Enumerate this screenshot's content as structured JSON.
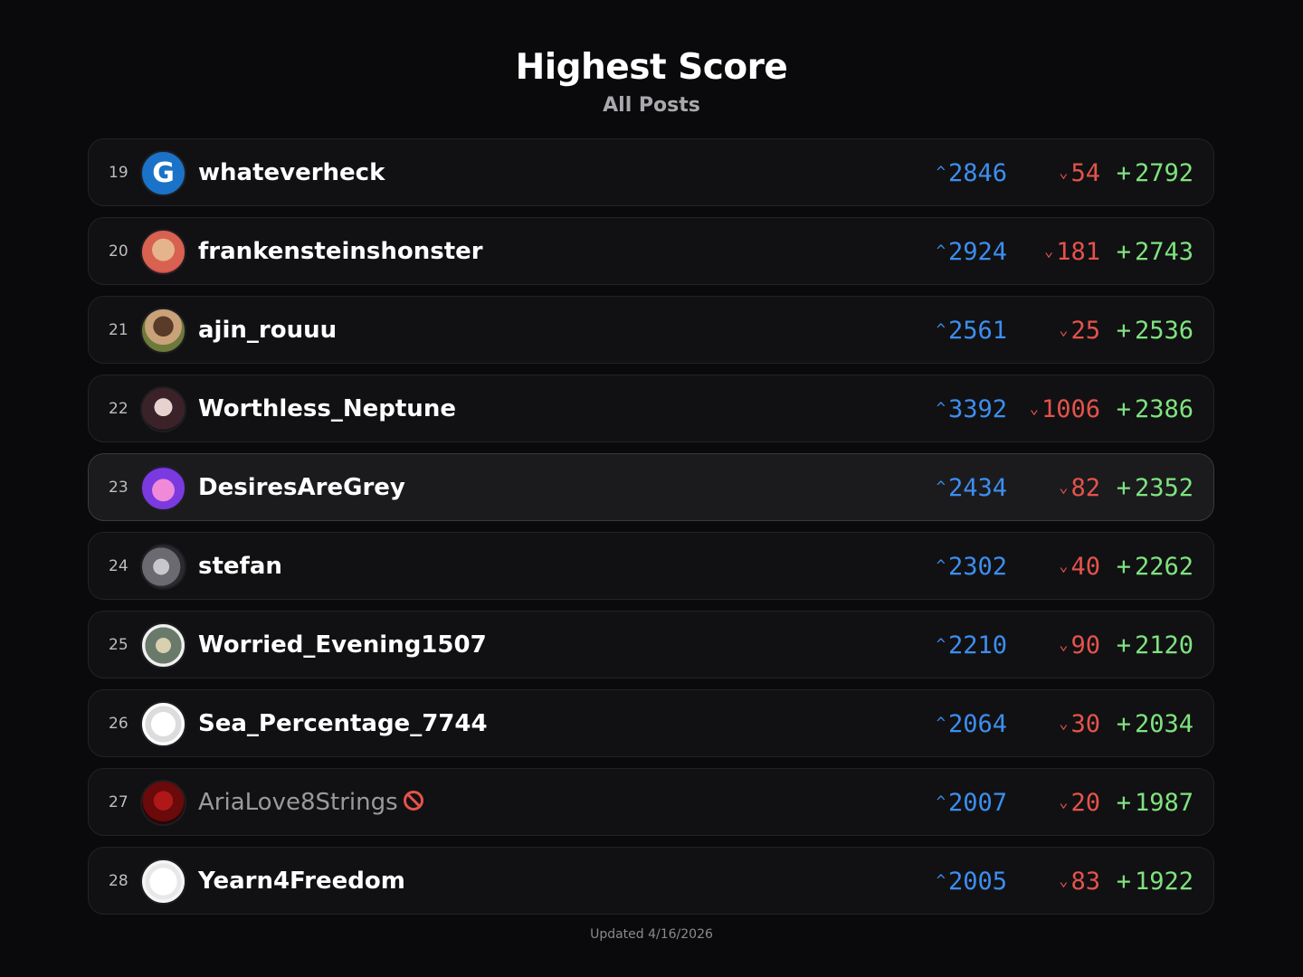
{
  "header": {
    "title": "Highest Score",
    "subtitle": "All Posts"
  },
  "symbols": {
    "up": "^",
    "down": "⌄",
    "net": "+"
  },
  "colors": {
    "upvote": "#3d8ef0",
    "downvote": "#e5534b",
    "net": "#7fe37f",
    "banned_icon": "#e5534b"
  },
  "rows": [
    {
      "rank": "19",
      "name": "whateverheck",
      "avatar_letter": "G",
      "up": "2846",
      "down": "54",
      "net": "2792"
    },
    {
      "rank": "20",
      "name": "frankensteinshonster",
      "up": "2924",
      "down": "181",
      "net": "2743"
    },
    {
      "rank": "21",
      "name": "ajin_rouuu",
      "up": "2561",
      "down": "25",
      "net": "2536"
    },
    {
      "rank": "22",
      "name": "Worthless_Neptune",
      "up": "3392",
      "down": "1006",
      "net": "2386"
    },
    {
      "rank": "23",
      "name": "DesiresAreGrey",
      "up": "2434",
      "down": "82",
      "net": "2352",
      "highlighted": true
    },
    {
      "rank": "24",
      "name": "stefan",
      "up": "2302",
      "down": "40",
      "net": "2262"
    },
    {
      "rank": "25",
      "name": "Worried_Evening1507",
      "up": "2210",
      "down": "90",
      "net": "2120"
    },
    {
      "rank": "26",
      "name": "Sea_Percentage_7744",
      "up": "2064",
      "down": "30",
      "net": "2034"
    },
    {
      "rank": "27",
      "name": "AriaLove8Strings",
      "up": "2007",
      "down": "20",
      "net": "1987",
      "banned": true
    },
    {
      "rank": "28",
      "name": "Yearn4Freedom",
      "up": "2005",
      "down": "83",
      "net": "1922"
    }
  ],
  "footer": {
    "updated": "Updated 4/16/2026"
  }
}
